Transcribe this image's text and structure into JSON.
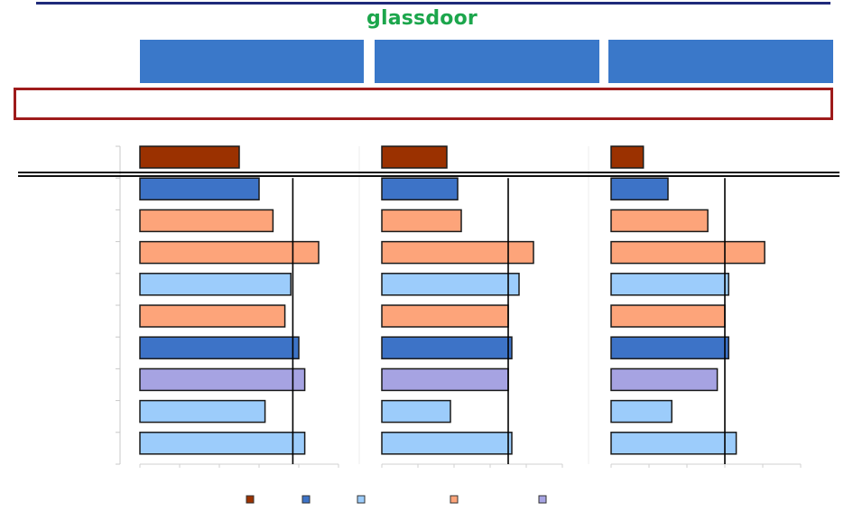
{
  "header": {
    "logo_text": "glassdoor"
  },
  "colors": {
    "dark_red": "#9b3100",
    "dark_blue": "#3d73c7",
    "light_blue": "#9cccfb",
    "orange": "#fda47a",
    "lavender": "#a6a3e2",
    "header_blue": "#3a78c9",
    "banner_border": "#9e1b1b",
    "logo_green": "#1ca64c"
  },
  "chart_data": {
    "type": "bar",
    "orientation": "horizontal",
    "panels": [
      {
        "xlim": [
          0,
          1
        ],
        "reference_line": 0.77,
        "bars": [
          {
            "value": 0.5,
            "color_key": "dark_red"
          },
          {
            "value": 0.6,
            "color_key": "dark_blue"
          },
          {
            "value": 0.67,
            "color_key": "orange"
          },
          {
            "value": 0.9,
            "color_key": "orange"
          },
          {
            "value": 0.76,
            "color_key": "light_blue"
          },
          {
            "value": 0.73,
            "color_key": "orange"
          },
          {
            "value": 0.8,
            "color_key": "dark_blue"
          },
          {
            "value": 0.83,
            "color_key": "lavender"
          },
          {
            "value": 0.63,
            "color_key": "light_blue"
          },
          {
            "value": 0.83,
            "color_key": "light_blue"
          }
        ]
      },
      {
        "xlim": [
          0,
          1
        ],
        "reference_line": 0.7,
        "bars": [
          {
            "value": 0.36,
            "color_key": "dark_red"
          },
          {
            "value": 0.42,
            "color_key": "dark_blue"
          },
          {
            "value": 0.44,
            "color_key": "orange"
          },
          {
            "value": 0.84,
            "color_key": "orange"
          },
          {
            "value": 0.76,
            "color_key": "light_blue"
          },
          {
            "value": 0.7,
            "color_key": "orange"
          },
          {
            "value": 0.72,
            "color_key": "dark_blue"
          },
          {
            "value": 0.7,
            "color_key": "lavender"
          },
          {
            "value": 0.38,
            "color_key": "light_blue"
          },
          {
            "value": 0.72,
            "color_key": "light_blue"
          }
        ]
      },
      {
        "xlim": [
          0,
          1
        ],
        "reference_line": 0.6,
        "bars": [
          {
            "value": 0.17,
            "color_key": "dark_red"
          },
          {
            "value": 0.3,
            "color_key": "dark_blue"
          },
          {
            "value": 0.51,
            "color_key": "orange"
          },
          {
            "value": 0.81,
            "color_key": "orange"
          },
          {
            "value": 0.62,
            "color_key": "light_blue"
          },
          {
            "value": 0.6,
            "color_key": "orange"
          },
          {
            "value": 0.62,
            "color_key": "dark_blue"
          },
          {
            "value": 0.56,
            "color_key": "lavender"
          },
          {
            "value": 0.32,
            "color_key": "light_blue"
          },
          {
            "value": 0.66,
            "color_key": "light_blue"
          }
        ]
      }
    ],
    "legend": {
      "placement": "bottom",
      "swatches": [
        "dark_red",
        "dark_blue",
        "light_blue",
        "orange",
        "lavender"
      ]
    }
  }
}
